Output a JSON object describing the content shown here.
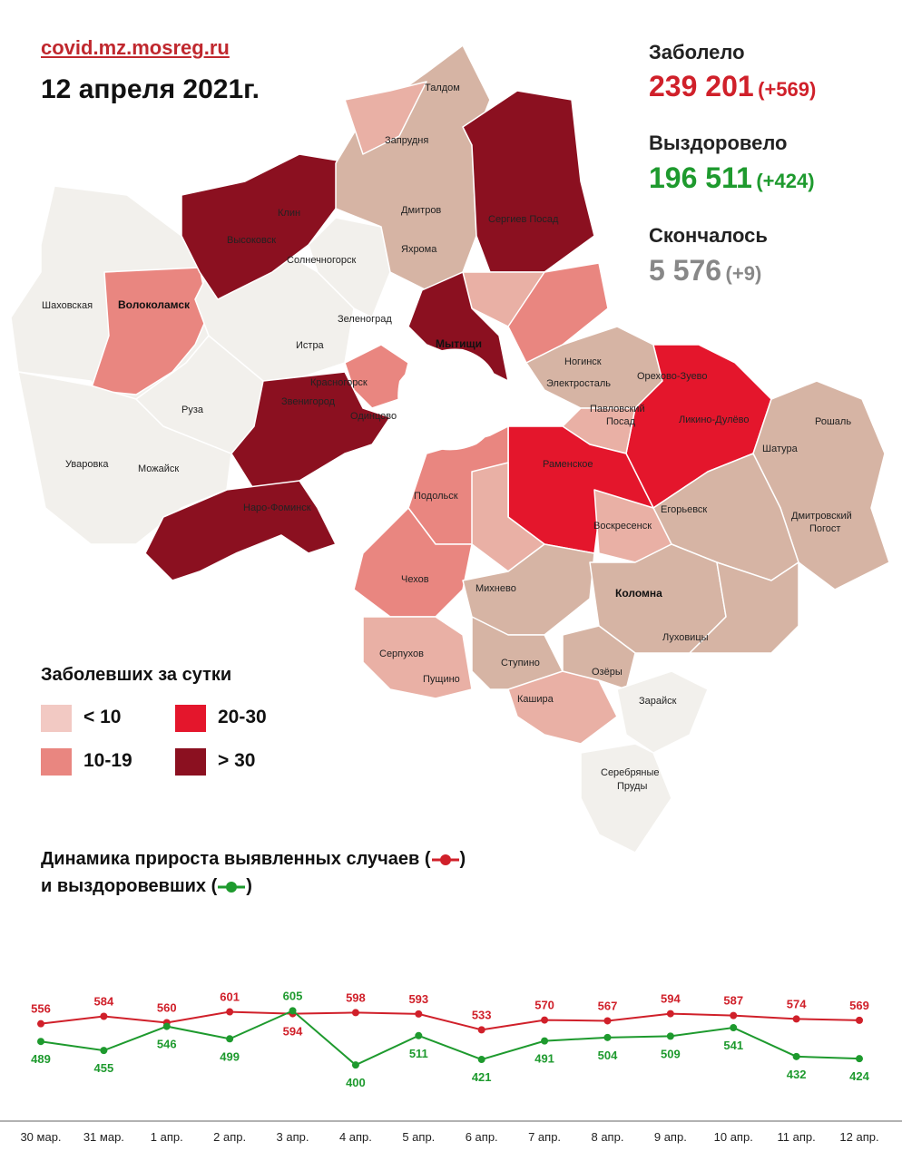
{
  "header": {
    "source": "covid.mz.mosreg.ru",
    "date": "12 апреля 2021г."
  },
  "stats": {
    "sick": {
      "label": "Заболело",
      "value": "239 201",
      "delta": "(+569)",
      "color": "#d0202a"
    },
    "recovered": {
      "label": "Выздоровело",
      "value": "196 511",
      "delta": "(+424)",
      "color": "#1e9a2e"
    },
    "died": {
      "label": "Скончалось",
      "value": "5 576",
      "delta": "(+9)",
      "color": "#888888"
    }
  },
  "map": {
    "cities": [
      "Талдом",
      "Запрудня",
      "Дмитров",
      "Яхрома",
      "Сергиев Посад",
      "Клин",
      "Высоковск",
      "Солнечногорск",
      "Шаховская",
      "Волоколамск",
      "Зеленоград",
      "Истра",
      "Мытищи",
      "Ногинск",
      "Электросталь",
      "Орехово-Зуево",
      "Павловский Посад",
      "Ликино-Дулёво",
      "Красногорск",
      "Звенигород",
      "Одинцово",
      "Руза",
      "Уваровка",
      "Можайск",
      "Наро-Фоминск",
      "Раменское",
      "Шатура",
      "Рошаль",
      "Егорьевск",
      "Дмитровский Погост",
      "Воскресенск",
      "Подольск",
      "Чехов",
      "Михнево",
      "Коломна",
      "Луховицы",
      "Серпухов",
      "Ступино",
      "Пущино",
      "Озёры",
      "Кашира",
      "Зарайск",
      "Серебряные Пруды"
    ],
    "colors": {
      "lt10": "#f2c9c3",
      "r10_19": "#e98680",
      "r20_30": "#e4162c",
      "gt30": "#8b1020",
      "no_data": "#f2f0ec",
      "tan": "#d6b4a4"
    }
  },
  "legend": {
    "title": "Заболевших за сутки",
    "items": [
      {
        "label": "< 10",
        "color": "#f2c9c3"
      },
      {
        "label": "20-30",
        "color": "#e4162c"
      },
      {
        "label": "10-19",
        "color": "#e98680"
      },
      {
        "label": "> 30",
        "color": "#8b1020"
      }
    ]
  },
  "dynamics": {
    "title_line1_pre": "Динамика прироста выявленных случаев (",
    "title_line1_post": ")",
    "title_line2_pre": "и выздоровевших (",
    "title_line2_post": ")"
  },
  "chart_data": {
    "type": "line",
    "categories": [
      "30 мар.",
      "31 мар.",
      "1 апр.",
      "2 апр.",
      "3 апр.",
      "4 апр.",
      "5 апр.",
      "6 апр.",
      "7 апр.",
      "8 апр.",
      "9 апр.",
      "10 апр.",
      "11 апр.",
      "12 апр."
    ],
    "series": [
      {
        "name": "выявленных случаев",
        "color": "#d0202a",
        "values": [
          556,
          584,
          560,
          601,
          594,
          598,
          593,
          533,
          570,
          567,
          594,
          587,
          574,
          569
        ]
      },
      {
        "name": "выздоровевших",
        "color": "#1e9a2e",
        "values": [
          489,
          455,
          546,
          499,
          605,
          400,
          511,
          421,
          491,
          504,
          509,
          541,
          432,
          424
        ]
      }
    ],
    "xlabel": "",
    "ylabel": "",
    "grid": false,
    "legend": "top-left"
  }
}
